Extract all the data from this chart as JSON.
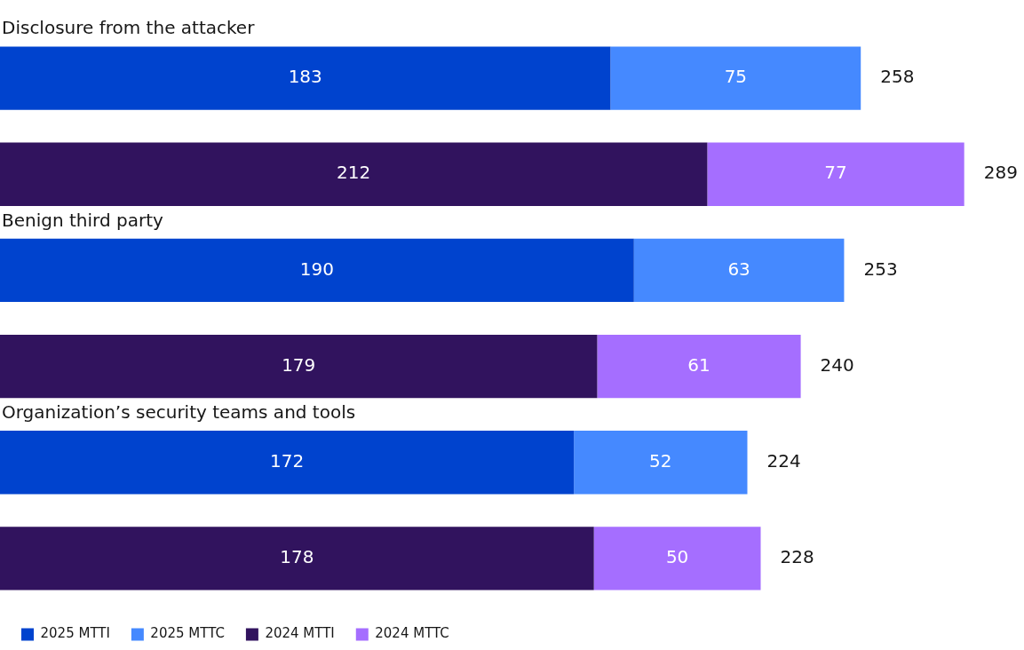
{
  "chart_data": {
    "type": "bar",
    "orientation": "horizontal",
    "stacked": true,
    "data_labels": true,
    "tick_labels": "y",
    "legend": "bottom left",
    "categories": [
      "Disclosure from the attacker",
      null,
      "Benign third party",
      null,
      "Organization’s security teams and tools",
      null
    ],
    "series": [
      {
        "name": "2025 MTTI",
        "color": "#0043ce",
        "values": [
          183,
          null,
          190,
          null,
          172,
          null
        ]
      },
      {
        "name": "2025 MTTC",
        "color": "#4589ff",
        "values": [
          75,
          null,
          63,
          null,
          52,
          null
        ]
      },
      {
        "name": "2024 MTTI",
        "color": "#31135e",
        "values": [
          null,
          212,
          null,
          179,
          null,
          178
        ]
      },
      {
        "name": "2024 MTTC",
        "color": "#a56eff",
        "values": [
          null,
          77,
          null,
          61,
          null,
          50
        ]
      }
    ],
    "totals": [
      "258",
      "289",
      "253",
      "240",
      "224",
      "228"
    ]
  }
}
